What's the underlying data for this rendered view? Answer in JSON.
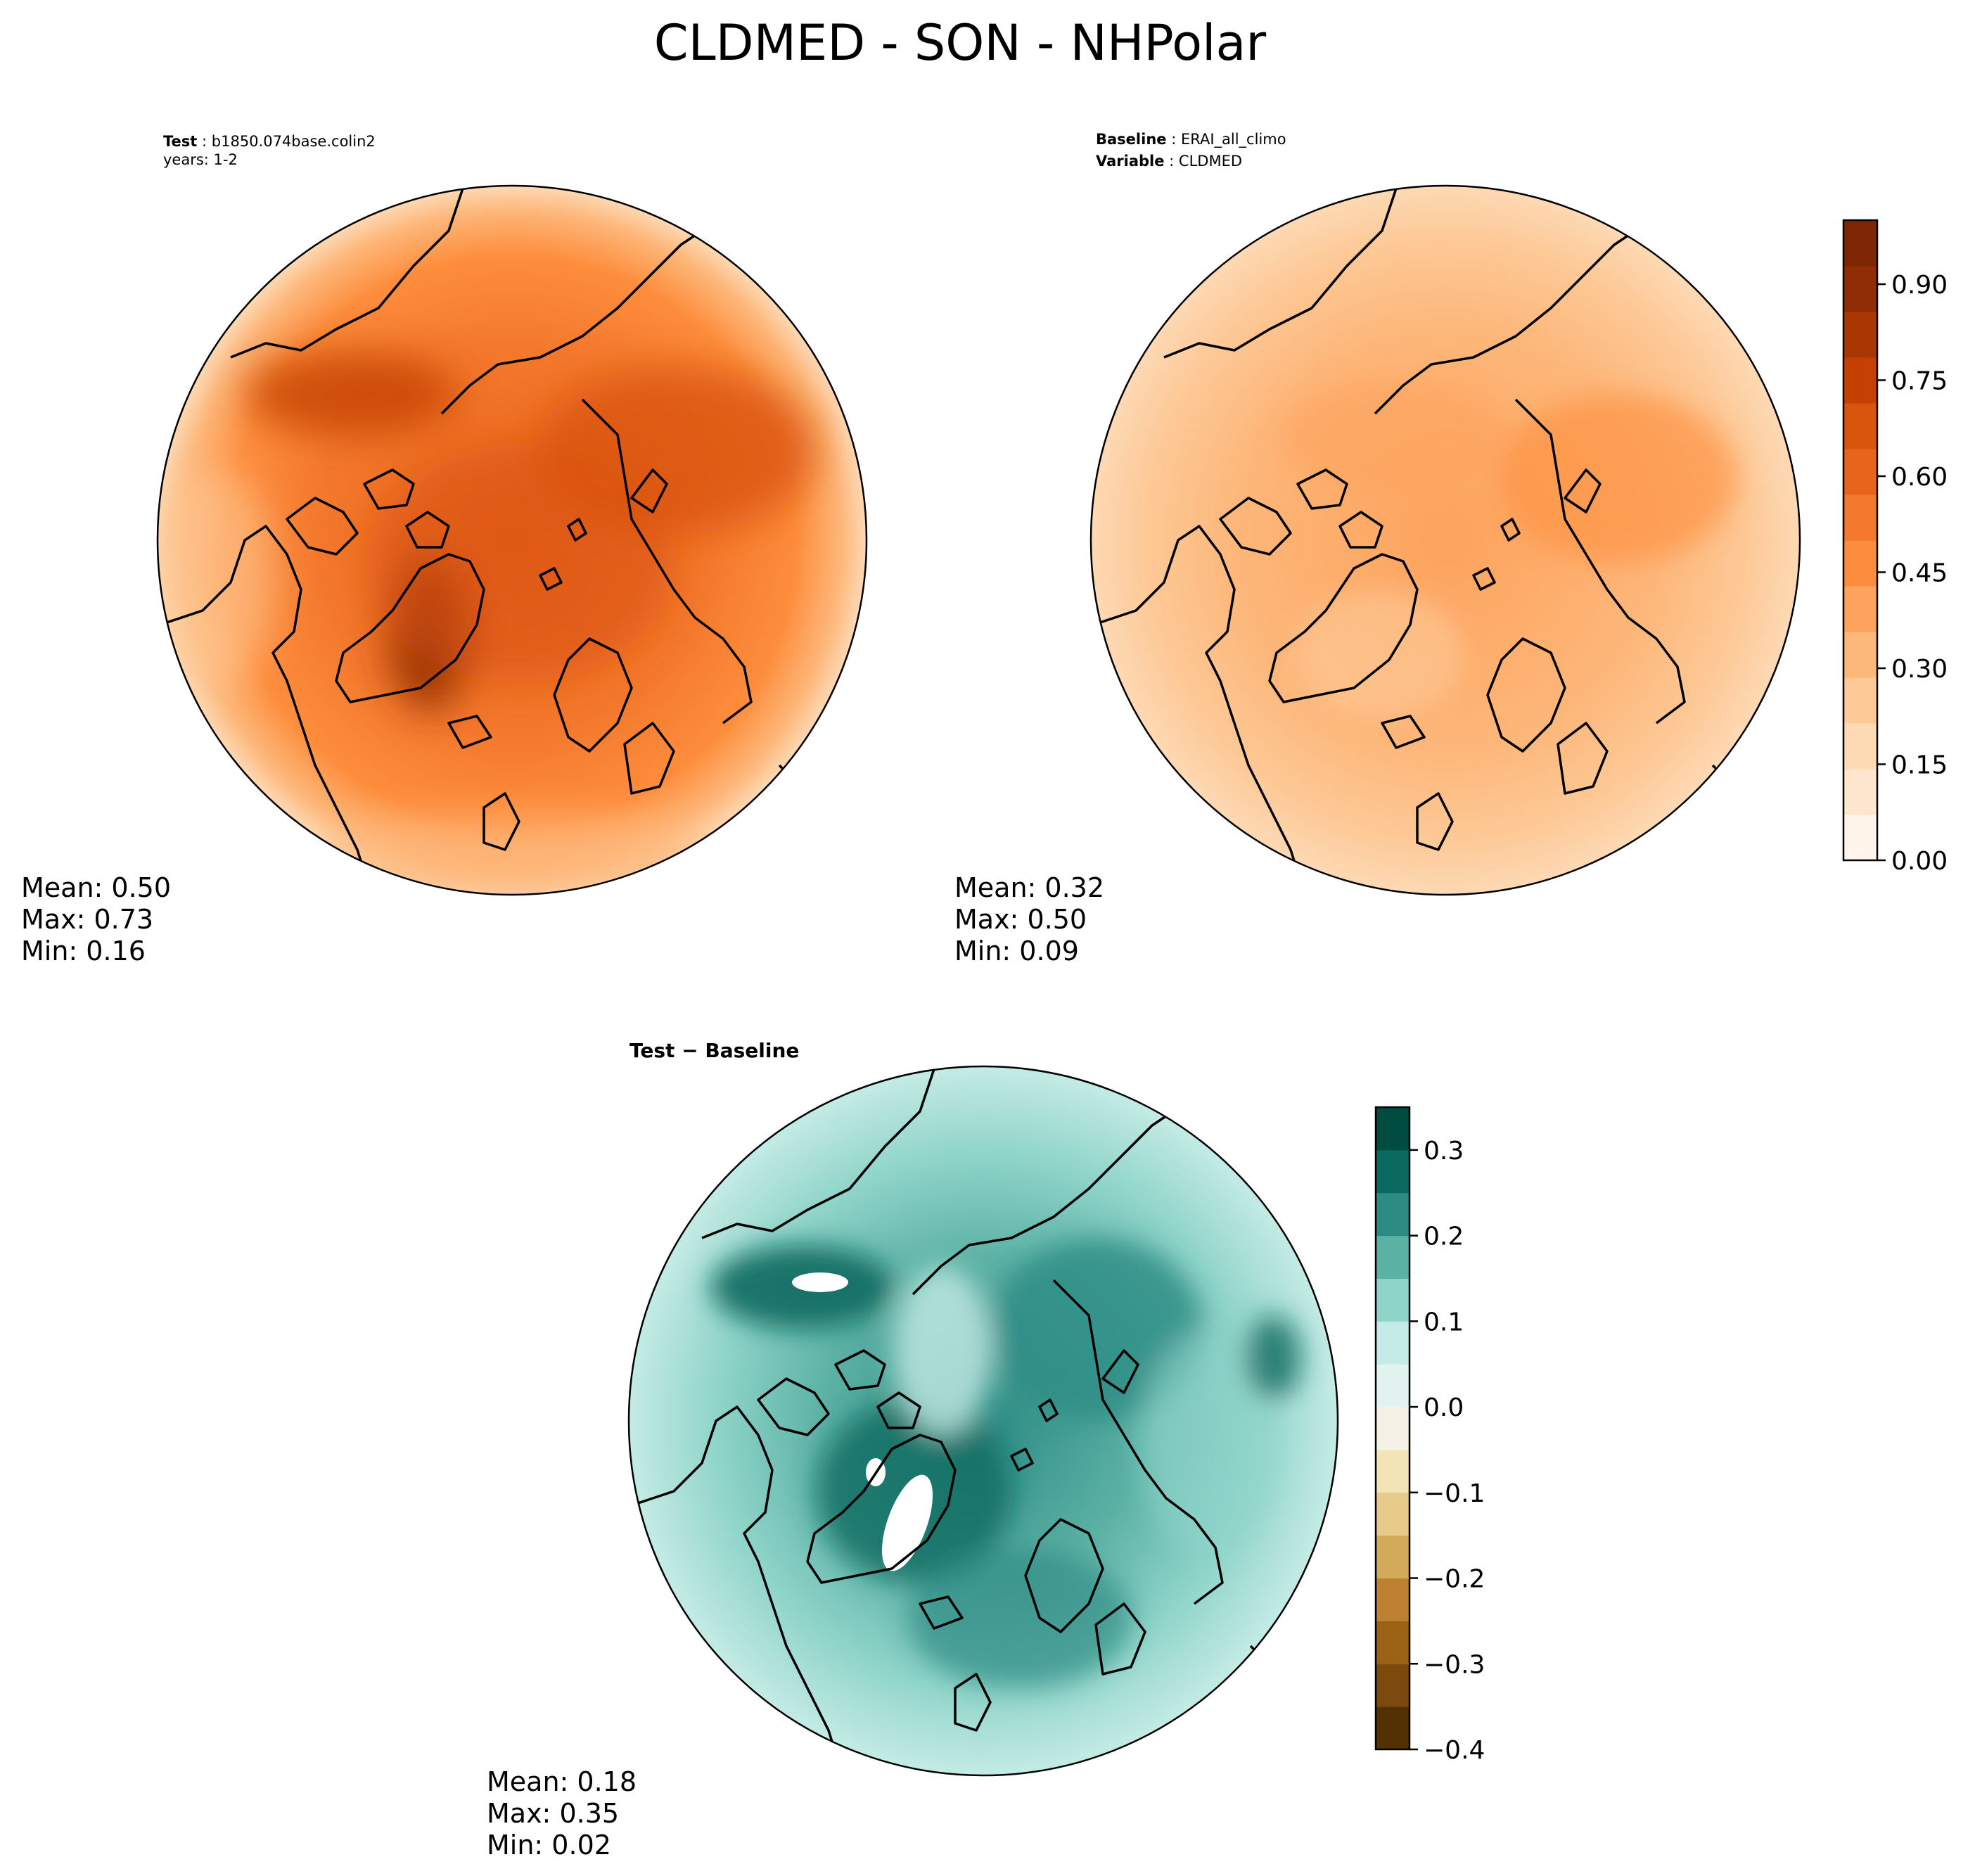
{
  "figure": {
    "title": "CLDMED - SON - NHPolar"
  },
  "panels": {
    "test": {
      "label_key": "Test",
      "label_value": "b1850.074base.colin2",
      "years_line": "years: 1-2",
      "stats": {
        "mean": "Mean:  0.50",
        "max": "Max:  0.73",
        "min": "Min:  0.16"
      }
    },
    "baseline": {
      "label_key": "Baseline",
      "label_value": "ERAI_all_climo",
      "variable_key": "Variable",
      "variable_value": "CLDMED",
      "stats": {
        "mean": "Mean:  0.32",
        "max": "Max:  0.50",
        "min": "Min:  0.09"
      }
    },
    "diff": {
      "title": "Test − Baseline",
      "stats": {
        "mean": "Mean:  0.18",
        "max": "Max:  0.35",
        "min": "Min:  0.02"
      }
    }
  },
  "colorbars": {
    "main": {
      "min": 0.0,
      "max": 1.0,
      "ticks": [
        0.0,
        0.15,
        0.3,
        0.45,
        0.6,
        0.75,
        0.9
      ],
      "tick_labels": [
        "0.00",
        "0.15",
        "0.30",
        "0.45",
        "0.60",
        "0.75",
        "0.90"
      ],
      "colors": [
        "#fff5eb",
        "#fee6ce",
        "#fdd9b4",
        "#fdc997",
        "#fdb77a",
        "#fda35d",
        "#fd8d3c",
        "#f4792d",
        "#e8641a",
        "#d9540c",
        "#c44103",
        "#a93703",
        "#8f2e04",
        "#7f2704"
      ]
    },
    "diff": {
      "min": -0.4,
      "max": 0.35,
      "ticks": [
        0.3,
        0.2,
        0.1,
        0.0,
        -0.1,
        -0.2,
        -0.3,
        -0.4
      ],
      "tick_labels": [
        "0.3",
        "0.2",
        "0.1",
        "0.0",
        "−0.1",
        "−0.2",
        "−0.3",
        "−0.4"
      ],
      "colors": [
        "#543005",
        "#7c4a0e",
        "#9c6317",
        "#bd8131",
        "#d4aa5b",
        "#e6ca89",
        "#f3e4b7",
        "#f5f1e6",
        "#e2f2ef",
        "#c4ebe5",
        "#8fd4c9",
        "#5cb1a5",
        "#2c8c84",
        "#0a6a60",
        "#004c40"
      ]
    }
  },
  "chart_data": [
    {
      "type": "map",
      "projection": "north polar stereographic",
      "panel": "test",
      "field": "CLDMED",
      "mean": 0.5,
      "max": 0.73,
      "min": 0.16
    },
    {
      "type": "map",
      "projection": "north polar stereographic",
      "panel": "baseline",
      "field": "CLDMED",
      "mean": 0.32,
      "max": 0.5,
      "min": 0.09
    },
    {
      "type": "map",
      "projection": "north polar stereographic",
      "panel": "difference",
      "mean": 0.18,
      "max": 0.35,
      "min": 0.02
    }
  ]
}
